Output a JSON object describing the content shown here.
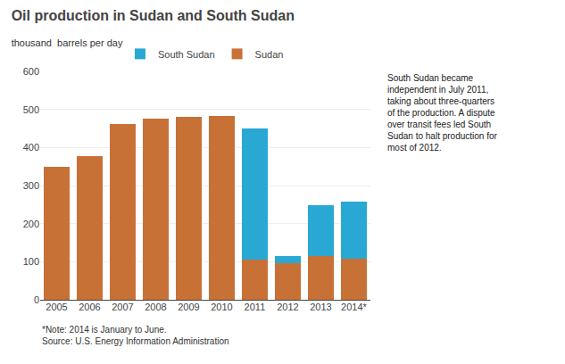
{
  "chart_data": {
    "type": "bar",
    "title": "Oil production in Sudan and South Sudan",
    "subtitle": "thousand  barrels per day",
    "categories": [
      "2005",
      "2006",
      "2007",
      "2008",
      "2009",
      "2010",
      "2011",
      "2012",
      "2013",
      "2014*"
    ],
    "series": [
      {
        "name": "Sudan",
        "color": "#C87137",
        "values": [
          350,
          378,
          462,
          475,
          480,
          483,
          105,
          95,
          115,
          108
        ]
      },
      {
        "name": "South Sudan",
        "color": "#29A8D4",
        "values": [
          0,
          0,
          0,
          0,
          0,
          0,
          345,
          20,
          133,
          150
        ]
      }
    ],
    "stacked": true,
    "ylim": [
      0,
      600
    ],
    "yticks": [
      0,
      100,
      200,
      300,
      400,
      500,
      600
    ],
    "grid": true,
    "legend": "upper center",
    "annotations": [
      "South Sudan became\nindependent in July 2011,\ntaking about three-quarters\nof the production. A dispute\nover transit fees led South\nSudan to halt production for\nmost of 2012.",
      "*Note: 2014 is January to June.\nSource: U.S. Energy Information Administration"
    ]
  }
}
